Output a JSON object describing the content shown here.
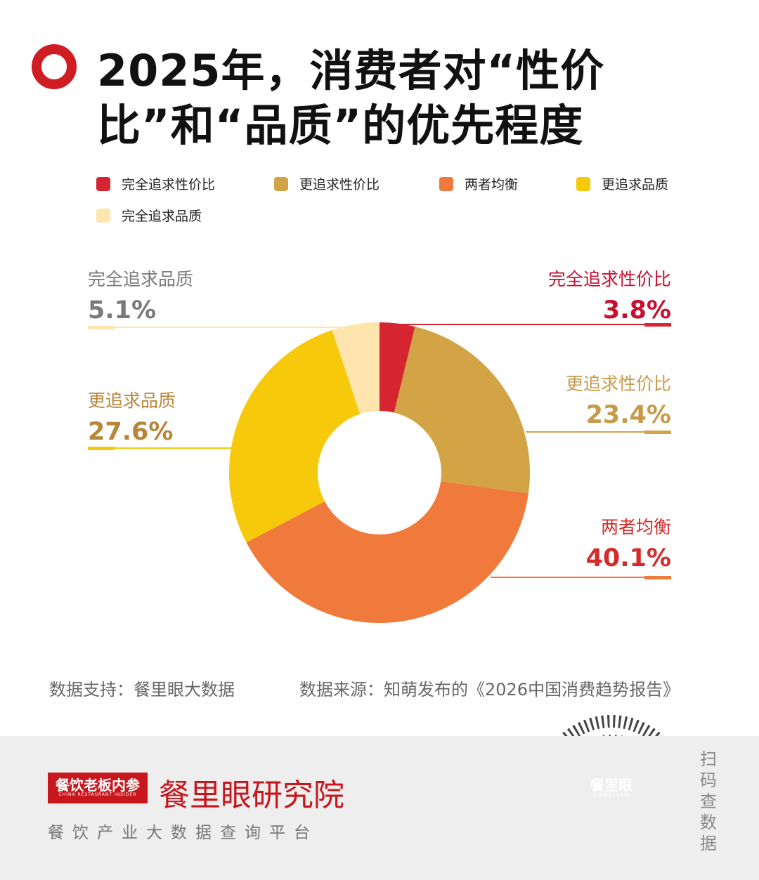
{
  "chart_data": {
    "type": "donut",
    "title": "2025年，消费者对“性价比”和“品质”的优先程度",
    "categories": [
      "完全追求性价比",
      "更追求性价比",
      "两者均衡",
      "更追求品质",
      "完全追求品质"
    ],
    "values": [
      3.8,
      23.4,
      40.1,
      27.6,
      5.1
    ],
    "value_labels": [
      "3.8%",
      "23.4%",
      "40.1%",
      "27.6%",
      "5.1%"
    ],
    "colors": [
      "#d42531",
      "#d2a446",
      "#ef7a3c",
      "#f6c90a",
      "#fde5ad"
    ]
  },
  "footer": {
    "support": "数据支持：餐里眼大数据",
    "source": "数据来源：知萌发布的《2026中国消费趋势报告》"
  },
  "brand": {
    "logo": "餐饮老板内参",
    "logo_en": "CHINA RESTAURANT INSIDER",
    "name": "餐里眼研究院",
    "slogan": "餐饮产业大数据查询平台",
    "qr_label": "餐里眼",
    "qr_label_en": "CANLIYAN",
    "scan": "扫码查数据"
  }
}
